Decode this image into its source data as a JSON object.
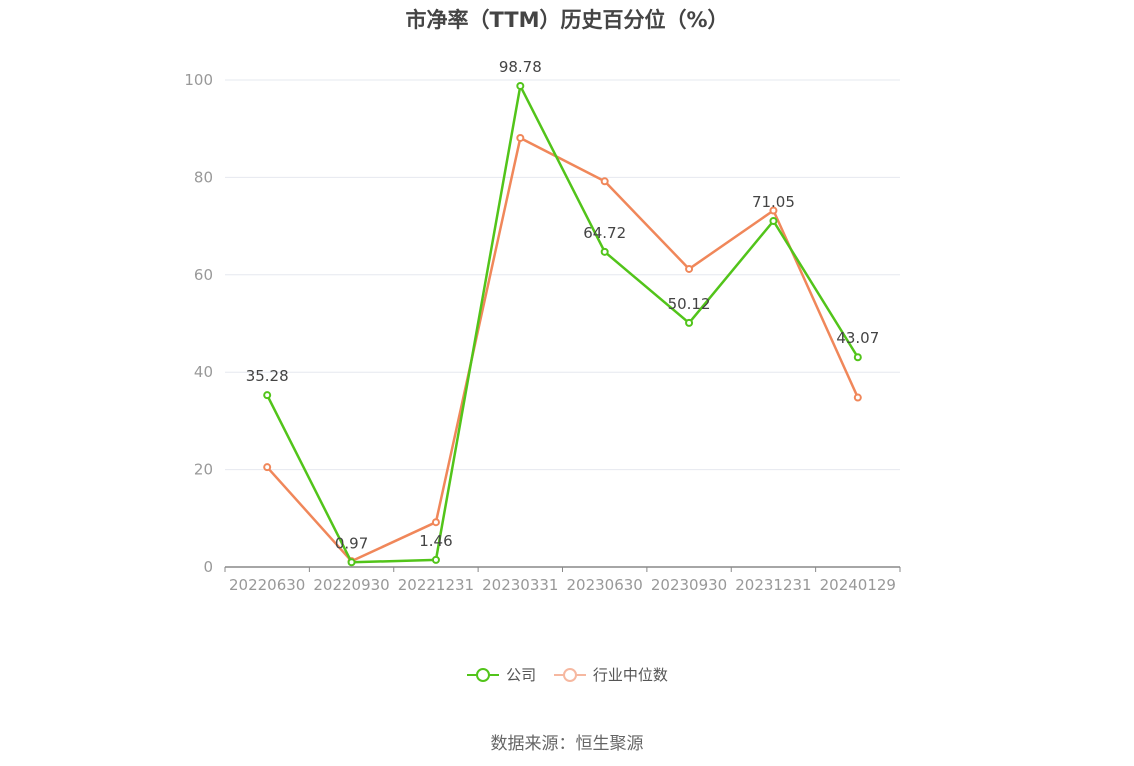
{
  "chart_data": {
    "type": "line",
    "title": "市净率（TTM）历史百分位（%）",
    "categories": [
      "20220630",
      "20220930",
      "20221231",
      "20230331",
      "20230630",
      "20230930",
      "20231231",
      "20240129"
    ],
    "ylim": [
      0,
      100
    ],
    "yticks": [
      0,
      20,
      40,
      60,
      80,
      100
    ],
    "grid": true,
    "legend_position": "bottom-center",
    "series": [
      {
        "name": "公司",
        "color": "#52c41a",
        "values": [
          35.28,
          0.97,
          1.46,
          98.78,
          64.72,
          50.12,
          71.05,
          43.07
        ],
        "labels": [
          "35.28",
          "0.97",
          "1.46",
          "98.78",
          "64.72",
          "50.12",
          "71.05",
          "43.07"
        ]
      },
      {
        "name": "行业中位数",
        "color": "#f0875a",
        "values": [
          20.5,
          1.2,
          9.2,
          88.1,
          79.2,
          61.2,
          73.2,
          34.8
        ]
      }
    ]
  },
  "legend": {
    "items": [
      {
        "label": "公司",
        "color": "#52c41a",
        "icon": "circle-line-icon"
      },
      {
        "label": "行业中位数",
        "color": "#f6b8a0",
        "icon": "circle-line-icon"
      }
    ]
  },
  "source": "数据来源：恒生聚源"
}
